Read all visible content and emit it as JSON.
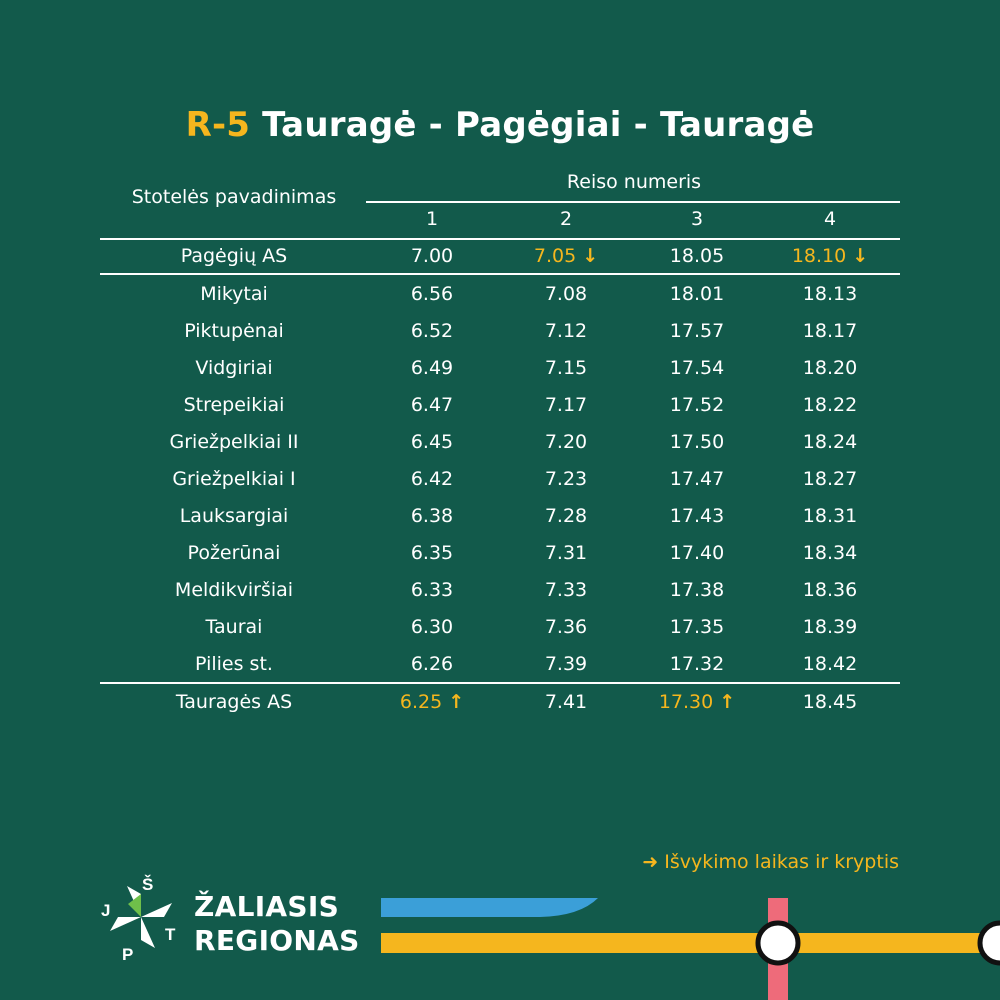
{
  "title": {
    "code": "R-5",
    "route": " Tauragė - Pagėgiai - Tauragė"
  },
  "table": {
    "stop_header": "Stotelės pavadinimas",
    "trip_header": "Reiso numeris",
    "trip_numbers": [
      "1",
      "2",
      "3",
      "4"
    ],
    "rows": [
      {
        "stop": "Pagėgių AS",
        "times": [
          "7.00",
          "7.05",
          "18.05",
          "18.10"
        ]
      },
      {
        "stop": "Mikytai",
        "times": [
          "6.56",
          "7.08",
          "18.01",
          "18.13"
        ]
      },
      {
        "stop": "Piktupėnai",
        "times": [
          "6.52",
          "7.12",
          "17.57",
          "18.17"
        ]
      },
      {
        "stop": "Vidgiriai",
        "times": [
          "6.49",
          "7.15",
          "17.54",
          "18.20"
        ]
      },
      {
        "stop": "Strepeikiai",
        "times": [
          "6.47",
          "7.17",
          "17.52",
          "18.22"
        ]
      },
      {
        "stop": "Griežpelkiai II",
        "times": [
          "6.45",
          "7.20",
          "17.50",
          "18.24"
        ]
      },
      {
        "stop": "Griežpelkiai I",
        "times": [
          "6.42",
          "7.23",
          "17.47",
          "18.27"
        ]
      },
      {
        "stop": "Lauksargiai",
        "times": [
          "6.38",
          "7.28",
          "17.43",
          "18.31"
        ]
      },
      {
        "stop": "Požerūnai",
        "times": [
          "6.35",
          "7.31",
          "17.40",
          "18.34"
        ]
      },
      {
        "stop": "Meldikviršiai",
        "times": [
          "6.33",
          "7.33",
          "17.38",
          "18.36"
        ]
      },
      {
        "stop": "Taurai",
        "times": [
          "6.30",
          "7.36",
          "17.35",
          "18.39"
        ]
      },
      {
        "stop": "Pilies st.",
        "times": [
          "6.26",
          "7.39",
          "17.32",
          "18.42"
        ]
      },
      {
        "stop": "Tauragės AS",
        "times": [
          "6.25",
          "7.41",
          "17.30",
          "18.45"
        ]
      }
    ],
    "departures": [
      {
        "row": 0,
        "col": 1,
        "direction": "down"
      },
      {
        "row": 0,
        "col": 3,
        "direction": "down"
      },
      {
        "row": 12,
        "col": 0,
        "direction": "up"
      },
      {
        "row": 12,
        "col": 2,
        "direction": "up"
      }
    ]
  },
  "legend": {
    "arrow_icon": "arrow-right-icon",
    "text": "Išvykimo laikas ir kryptis"
  },
  "logo": {
    "letters": [
      "J",
      "Š",
      "T",
      "P"
    ],
    "line1": "ŽALIASIS",
    "line2": "REGIONAS"
  },
  "colors": {
    "background": "#125a4b",
    "accent_yellow": "#f5b61e",
    "line_blue": "#3b9fd8",
    "line_pink": "#ee6b7a",
    "text": "#ffffff"
  }
}
